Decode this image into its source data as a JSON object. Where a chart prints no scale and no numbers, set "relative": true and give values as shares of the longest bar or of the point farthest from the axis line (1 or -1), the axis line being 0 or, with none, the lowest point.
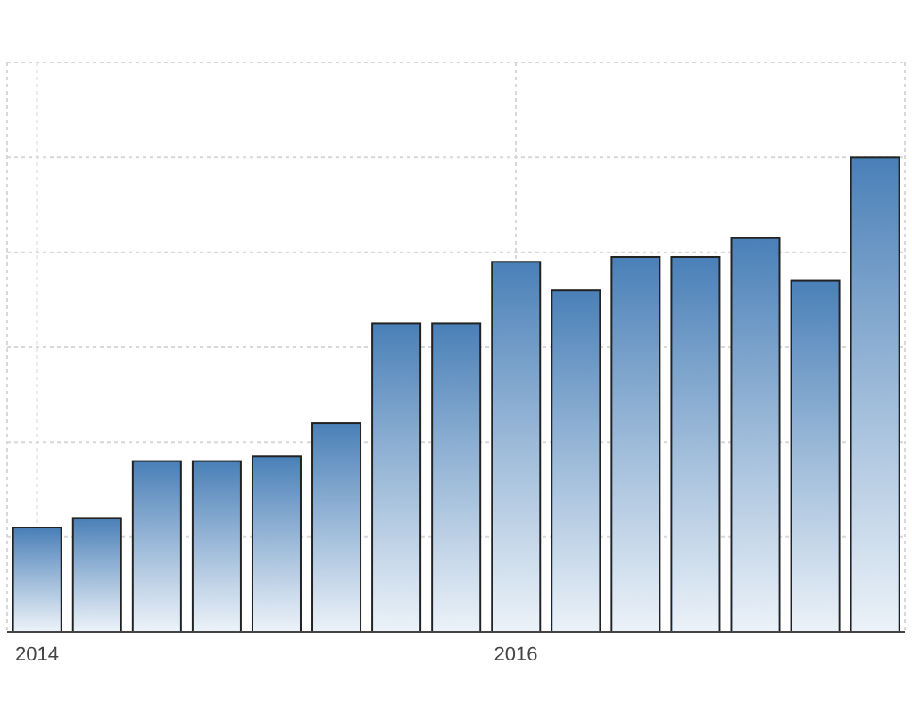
{
  "chart_data": {
    "type": "bar",
    "relative": true,
    "categories": [
      "2014",
      null,
      null,
      null,
      null,
      null,
      null,
      null,
      "2016",
      null,
      null,
      null,
      null,
      null,
      null
    ],
    "values": [
      0.22,
      0.24,
      0.36,
      0.36,
      0.37,
      0.44,
      0.65,
      0.65,
      0.78,
      0.72,
      0.79,
      0.79,
      0.83,
      0.74,
      1
    ],
    "color": "#4a80b8",
    "grid": true
  }
}
